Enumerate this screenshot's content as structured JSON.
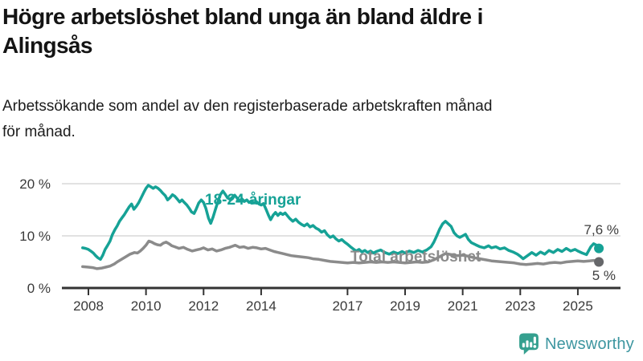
{
  "header": {
    "title": "Högre arbetslöshet bland unga än bland äldre i\nAlingsås",
    "subtitle": "Arbetssökande som andel av den registerbaserade arbetskraften månad\nför månad."
  },
  "footer": {
    "brand": "Newsworthy"
  },
  "colors": {
    "accent_teal": "#16a296",
    "line_gray": "#8b8b8b",
    "dot_gray": "#66676a",
    "grid": "#d9d9d9",
    "axis": "#333333",
    "value_label": "#3d3d3d",
    "logo_teal": "#35a08f",
    "logo_text": "#3d96a0"
  },
  "chart_data": {
    "type": "line",
    "title": "Högre arbetslöshet bland unga än bland äldre i Alingsås",
    "subtitle": "Arbetssökande som andel av den registerbaserade arbetskraften månad för månad.",
    "unit": "%",
    "xlabel": "",
    "ylabel": "",
    "grid": "horizontal",
    "legend_position": "inline-labels",
    "x_ticks": [
      2008,
      2010,
      2012,
      2014,
      2017,
      2019,
      2021,
      2023,
      2025
    ],
    "y_ticks": [
      {
        "value": 0,
        "label": "0 %"
      },
      {
        "value": 10,
        "label": "10 %"
      },
      {
        "value": 20,
        "label": "20 %"
      }
    ],
    "xlim": [
      2007.1,
      2026.5
    ],
    "ylim": [
      0,
      23.5
    ],
    "series": [
      {
        "id": "youth",
        "name": "18-24-åringar",
        "color": "#16a296",
        "dot_color": "#16a296",
        "end_label": "7,6 %",
        "end_value": 7.6,
        "points": [
          [
            2007.8,
            7.7
          ],
          [
            2007.9,
            7.6
          ],
          [
            2008.0,
            7.4
          ],
          [
            2008.08,
            7.1
          ],
          [
            2008.17,
            6.7
          ],
          [
            2008.25,
            6.2
          ],
          [
            2008.33,
            5.8
          ],
          [
            2008.42,
            5.5
          ],
          [
            2008.5,
            6.3
          ],
          [
            2008.58,
            7.4
          ],
          [
            2008.67,
            8.2
          ],
          [
            2008.75,
            9.0
          ],
          [
            2008.83,
            10.2
          ],
          [
            2008.92,
            11.2
          ],
          [
            2009.0,
            11.9
          ],
          [
            2009.08,
            12.8
          ],
          [
            2009.17,
            13.5
          ],
          [
            2009.25,
            14.1
          ],
          [
            2009.33,
            14.8
          ],
          [
            2009.42,
            15.6
          ],
          [
            2009.5,
            16.1
          ],
          [
            2009.58,
            15.1
          ],
          [
            2009.67,
            15.7
          ],
          [
            2009.75,
            16.4
          ],
          [
            2009.83,
            17.3
          ],
          [
            2009.92,
            18.3
          ],
          [
            2010.0,
            19.1
          ],
          [
            2010.08,
            19.7
          ],
          [
            2010.17,
            19.4
          ],
          [
            2010.25,
            19.1
          ],
          [
            2010.33,
            19.4
          ],
          [
            2010.42,
            19.1
          ],
          [
            2010.5,
            18.7
          ],
          [
            2010.58,
            18.2
          ],
          [
            2010.67,
            17.7
          ],
          [
            2010.75,
            16.9
          ],
          [
            2010.83,
            17.3
          ],
          [
            2010.92,
            17.9
          ],
          [
            2011.0,
            17.6
          ],
          [
            2011.08,
            17.1
          ],
          [
            2011.17,
            16.5
          ],
          [
            2011.25,
            16.9
          ],
          [
            2011.33,
            16.4
          ],
          [
            2011.42,
            15.9
          ],
          [
            2011.5,
            15.3
          ],
          [
            2011.58,
            14.6
          ],
          [
            2011.67,
            14.3
          ],
          [
            2011.75,
            15.2
          ],
          [
            2011.83,
            16.3
          ],
          [
            2011.92,
            16.9
          ],
          [
            2012.0,
            16.4
          ],
          [
            2012.08,
            15.3
          ],
          [
            2012.17,
            13.4
          ],
          [
            2012.25,
            12.4
          ],
          [
            2012.33,
            13.6
          ],
          [
            2012.42,
            15.2
          ],
          [
            2012.5,
            16.6
          ],
          [
            2012.58,
            17.9
          ],
          [
            2012.67,
            18.6
          ],
          [
            2012.75,
            18.0
          ],
          [
            2012.83,
            17.3
          ],
          [
            2012.92,
            17.0
          ],
          [
            2013.0,
            17.4
          ],
          [
            2013.08,
            17.8
          ],
          [
            2013.17,
            17.2
          ],
          [
            2013.25,
            16.7
          ],
          [
            2013.33,
            17.1
          ],
          [
            2013.42,
            16.6
          ],
          [
            2013.5,
            16.9
          ],
          [
            2013.58,
            16.4
          ],
          [
            2013.67,
            16.7
          ],
          [
            2013.75,
            16.3
          ],
          [
            2013.83,
            16.6
          ],
          [
            2013.92,
            16.1
          ],
          [
            2014.0,
            15.9
          ],
          [
            2014.08,
            16.2
          ],
          [
            2014.17,
            15.1
          ],
          [
            2014.25,
            14.0
          ],
          [
            2014.33,
            13.1
          ],
          [
            2014.42,
            14.0
          ],
          [
            2014.5,
            14.5
          ],
          [
            2014.58,
            13.9
          ],
          [
            2014.67,
            14.4
          ],
          [
            2014.75,
            14.1
          ],
          [
            2014.83,
            14.4
          ],
          [
            2014.92,
            13.8
          ],
          [
            2015.0,
            13.3
          ],
          [
            2015.1,
            12.8
          ],
          [
            2015.2,
            13.2
          ],
          [
            2015.3,
            12.6
          ],
          [
            2015.4,
            12.2
          ],
          [
            2015.5,
            11.9
          ],
          [
            2015.6,
            12.3
          ],
          [
            2015.7,
            11.7
          ],
          [
            2015.8,
            12.0
          ],
          [
            2015.9,
            11.5
          ],
          [
            2016.0,
            11.2
          ],
          [
            2016.1,
            10.7
          ],
          [
            2016.2,
            11.0
          ],
          [
            2016.3,
            10.2
          ],
          [
            2016.4,
            9.7
          ],
          [
            2016.5,
            10.0
          ],
          [
            2016.6,
            9.4
          ],
          [
            2016.7,
            9.0
          ],
          [
            2016.8,
            9.3
          ],
          [
            2016.9,
            8.8
          ],
          [
            2017.0,
            8.4
          ],
          [
            2017.1,
            7.9
          ],
          [
            2017.2,
            7.5
          ],
          [
            2017.3,
            7.1
          ],
          [
            2017.4,
            7.4
          ],
          [
            2017.5,
            6.9
          ],
          [
            2017.6,
            7.2
          ],
          [
            2017.7,
            6.8
          ],
          [
            2017.8,
            7.1
          ],
          [
            2017.9,
            6.7
          ],
          [
            2018.0,
            7.0
          ],
          [
            2018.15,
            7.3
          ],
          [
            2018.3,
            6.8
          ],
          [
            2018.45,
            6.5
          ],
          [
            2018.6,
            6.9
          ],
          [
            2018.75,
            6.6
          ],
          [
            2018.9,
            7.0
          ],
          [
            2019.0,
            6.7
          ],
          [
            2019.15,
            7.1
          ],
          [
            2019.3,
            6.8
          ],
          [
            2019.45,
            7.2
          ],
          [
            2019.6,
            6.9
          ],
          [
            2019.75,
            7.3
          ],
          [
            2019.9,
            7.9
          ],
          [
            2020.0,
            8.8
          ],
          [
            2020.1,
            10.0
          ],
          [
            2020.2,
            11.3
          ],
          [
            2020.3,
            12.3
          ],
          [
            2020.4,
            12.8
          ],
          [
            2020.5,
            12.3
          ],
          [
            2020.6,
            11.8
          ],
          [
            2020.7,
            10.6
          ],
          [
            2020.8,
            10.0
          ],
          [
            2020.9,
            9.7
          ],
          [
            2021.0,
            10.0
          ],
          [
            2021.1,
            10.3
          ],
          [
            2021.2,
            9.3
          ],
          [
            2021.3,
            8.7
          ],
          [
            2021.45,
            8.3
          ],
          [
            2021.6,
            7.9
          ],
          [
            2021.75,
            7.7
          ],
          [
            2021.9,
            8.1
          ],
          [
            2022.0,
            7.7
          ],
          [
            2022.15,
            7.9
          ],
          [
            2022.3,
            7.5
          ],
          [
            2022.45,
            7.7
          ],
          [
            2022.6,
            7.2
          ],
          [
            2022.75,
            6.9
          ],
          [
            2022.9,
            6.5
          ],
          [
            2023.0,
            6.1
          ],
          [
            2023.1,
            5.6
          ],
          [
            2023.25,
            6.2
          ],
          [
            2023.4,
            6.8
          ],
          [
            2023.55,
            6.3
          ],
          [
            2023.7,
            6.9
          ],
          [
            2023.85,
            6.5
          ],
          [
            2024.0,
            7.2
          ],
          [
            2024.15,
            6.8
          ],
          [
            2024.3,
            7.4
          ],
          [
            2024.45,
            7.0
          ],
          [
            2024.6,
            7.6
          ],
          [
            2024.75,
            7.1
          ],
          [
            2024.9,
            7.4
          ],
          [
            2025.0,
            7.1
          ],
          [
            2025.15,
            6.7
          ],
          [
            2025.3,
            6.4
          ],
          [
            2025.45,
            7.9
          ],
          [
            2025.55,
            8.5
          ],
          [
            2025.65,
            8.2
          ],
          [
            2025.73,
            7.6
          ]
        ]
      },
      {
        "id": "total",
        "name": "Total arbetslöshet",
        "color": "#8b8b8b",
        "dot_color": "#66676a",
        "end_label": "5 %",
        "end_value": 5.0,
        "points": [
          [
            2007.8,
            4.1
          ],
          [
            2008.0,
            4.0
          ],
          [
            2008.15,
            3.9
          ],
          [
            2008.3,
            3.7
          ],
          [
            2008.45,
            3.8
          ],
          [
            2008.6,
            4.0
          ],
          [
            2008.75,
            4.2
          ],
          [
            2008.9,
            4.6
          ],
          [
            2009.0,
            5.0
          ],
          [
            2009.15,
            5.5
          ],
          [
            2009.3,
            6.0
          ],
          [
            2009.45,
            6.5
          ],
          [
            2009.6,
            6.8
          ],
          [
            2009.7,
            6.7
          ],
          [
            2009.8,
            7.1
          ],
          [
            2009.9,
            7.6
          ],
          [
            2010.0,
            8.2
          ],
          [
            2010.1,
            9.0
          ],
          [
            2010.2,
            8.8
          ],
          [
            2010.3,
            8.5
          ],
          [
            2010.4,
            8.3
          ],
          [
            2010.5,
            8.2
          ],
          [
            2010.6,
            8.6
          ],
          [
            2010.7,
            8.8
          ],
          [
            2010.8,
            8.5
          ],
          [
            2010.9,
            8.1
          ],
          [
            2011.0,
            7.9
          ],
          [
            2011.15,
            7.6
          ],
          [
            2011.3,
            7.8
          ],
          [
            2011.45,
            7.4
          ],
          [
            2011.6,
            7.1
          ],
          [
            2011.75,
            7.3
          ],
          [
            2011.9,
            7.5
          ],
          [
            2012.0,
            7.7
          ],
          [
            2012.15,
            7.3
          ],
          [
            2012.3,
            7.5
          ],
          [
            2012.45,
            7.1
          ],
          [
            2012.6,
            7.3
          ],
          [
            2012.75,
            7.6
          ],
          [
            2012.9,
            7.8
          ],
          [
            2013.0,
            8.0
          ],
          [
            2013.1,
            8.2
          ],
          [
            2013.25,
            7.8
          ],
          [
            2013.4,
            7.9
          ],
          [
            2013.55,
            7.6
          ],
          [
            2013.7,
            7.8
          ],
          [
            2013.85,
            7.7
          ],
          [
            2014.0,
            7.5
          ],
          [
            2014.15,
            7.6
          ],
          [
            2014.3,
            7.3
          ],
          [
            2014.45,
            7.0
          ],
          [
            2014.6,
            6.8
          ],
          [
            2014.75,
            6.6
          ],
          [
            2014.9,
            6.4
          ],
          [
            2015.05,
            6.2
          ],
          [
            2015.2,
            6.1
          ],
          [
            2015.35,
            6.0
          ],
          [
            2015.5,
            5.9
          ],
          [
            2015.65,
            5.8
          ],
          [
            2015.8,
            5.6
          ],
          [
            2016.0,
            5.5
          ],
          [
            2016.2,
            5.3
          ],
          [
            2016.4,
            5.1
          ],
          [
            2016.6,
            5.0
          ],
          [
            2016.8,
            4.9
          ],
          [
            2017.0,
            4.8
          ],
          [
            2017.2,
            4.9
          ],
          [
            2017.4,
            4.8
          ],
          [
            2017.6,
            4.9
          ],
          [
            2017.8,
            5.0
          ],
          [
            2018.0,
            4.9
          ],
          [
            2018.2,
            5.0
          ],
          [
            2018.4,
            4.9
          ],
          [
            2018.6,
            5.0
          ],
          [
            2018.8,
            4.9
          ],
          [
            2019.0,
            4.8
          ],
          [
            2019.2,
            4.9
          ],
          [
            2019.4,
            5.0
          ],
          [
            2019.6,
            4.9
          ],
          [
            2019.8,
            5.0
          ],
          [
            2020.0,
            5.4
          ],
          [
            2020.2,
            6.0
          ],
          [
            2020.4,
            6.6
          ],
          [
            2020.6,
            6.4
          ],
          [
            2020.8,
            6.2
          ],
          [
            2021.0,
            6.3
          ],
          [
            2021.2,
            6.1
          ],
          [
            2021.4,
            5.8
          ],
          [
            2021.6,
            5.6
          ],
          [
            2021.8,
            5.4
          ],
          [
            2022.0,
            5.2
          ],
          [
            2022.2,
            5.1
          ],
          [
            2022.4,
            5.0
          ],
          [
            2022.6,
            4.9
          ],
          [
            2022.8,
            4.8
          ],
          [
            2023.0,
            4.6
          ],
          [
            2023.2,
            4.5
          ],
          [
            2023.4,
            4.6
          ],
          [
            2023.6,
            4.7
          ],
          [
            2023.8,
            4.6
          ],
          [
            2024.0,
            4.8
          ],
          [
            2024.2,
            4.9
          ],
          [
            2024.4,
            4.8
          ],
          [
            2024.6,
            5.0
          ],
          [
            2024.8,
            5.1
          ],
          [
            2025.0,
            5.2
          ],
          [
            2025.2,
            5.1
          ],
          [
            2025.4,
            5.2
          ],
          [
            2025.55,
            5.3
          ],
          [
            2025.73,
            5.0
          ]
        ]
      }
    ]
  }
}
